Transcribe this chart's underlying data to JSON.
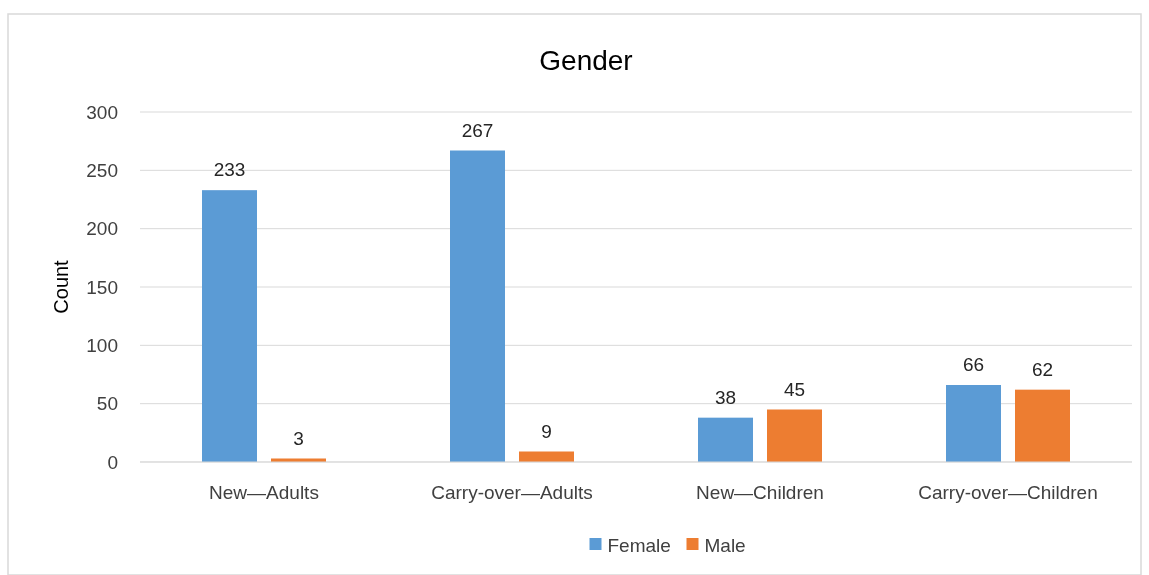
{
  "chart_data": {
    "type": "bar",
    "title": "Gender",
    "ylabel": "Count",
    "categories": [
      "New—Adults",
      "Carry-over—Adults",
      "New—Children",
      "Carry-over—Children"
    ],
    "series": [
      {
        "name": "Female",
        "color": "#5b9bd5",
        "values": [
          233,
          267,
          38,
          66
        ]
      },
      {
        "name": "Male",
        "color": "#ed7d31",
        "values": [
          3,
          9,
          45,
          62
        ]
      }
    ],
    "ylim": [
      0,
      300
    ],
    "yticks": [
      0,
      50,
      100,
      150,
      200,
      250,
      300
    ],
    "grid": "y",
    "legend": "bottom",
    "data_labels": true
  }
}
